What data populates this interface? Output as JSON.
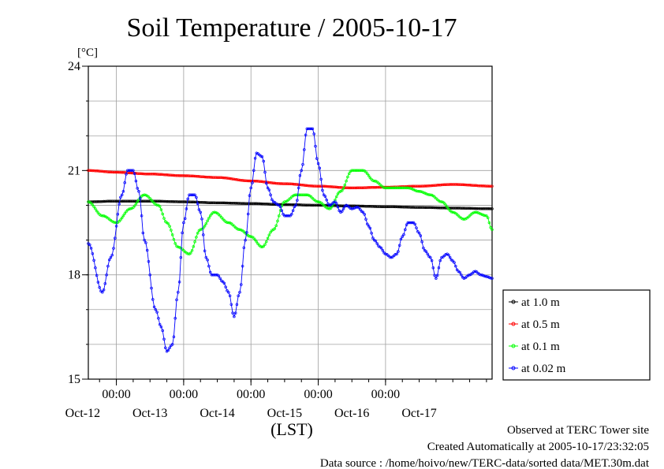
{
  "chart_data": {
    "type": "line",
    "title": "Soil Temperature / 2005-10-17",
    "ylabel": "[°C]",
    "xlabel": "(LST)",
    "ylim": [
      15,
      24
    ],
    "yticks": [
      15,
      18,
      21,
      24
    ],
    "xlim": [
      -10,
      134
    ],
    "x_unit": "hours from 2005-10-12 00:00 LST",
    "xticks_time": [
      "00:00",
      "00:00",
      "00:00",
      "00:00",
      "00:00"
    ],
    "xticks_date": [
      "Oct-12",
      "Oct-13",
      "Oct-14",
      "Oct-15",
      "Oct-16",
      "Oct-17"
    ],
    "grid": true,
    "legend_position": "right",
    "series": [
      {
        "name": "at 1.0 m",
        "color": "#000000",
        "x": [
          -10,
          0,
          12,
          24,
          36,
          48,
          60,
          72,
          84,
          96,
          108,
          120,
          134
        ],
        "y": [
          20.1,
          20.12,
          20.12,
          20.1,
          20.07,
          20.05,
          20.02,
          20.0,
          19.98,
          19.96,
          19.94,
          19.92,
          19.9
        ]
      },
      {
        "name": "at 0.5 m",
        "color": "#ff0000",
        "x": [
          -10,
          0,
          12,
          24,
          36,
          48,
          60,
          72,
          84,
          96,
          108,
          120,
          134
        ],
        "y": [
          21.0,
          20.95,
          20.9,
          20.85,
          20.8,
          20.7,
          20.62,
          20.55,
          20.5,
          20.52,
          20.55,
          20.6,
          20.55
        ]
      },
      {
        "name": "at 0.1 m",
        "color": "#00ff00",
        "x": [
          -10,
          -5,
          0,
          5,
          10,
          15,
          18,
          22,
          26,
          30,
          35,
          40,
          44,
          48,
          52,
          56,
          60,
          64,
          68,
          72,
          76,
          80,
          84,
          88,
          92,
          96,
          100,
          104,
          108,
          112,
          116,
          120,
          124,
          128,
          132,
          134
        ],
        "y": [
          20.1,
          19.7,
          19.5,
          19.9,
          20.3,
          20.0,
          19.5,
          18.8,
          18.6,
          19.3,
          19.8,
          19.5,
          19.3,
          19.1,
          18.8,
          19.3,
          20.1,
          20.3,
          20.3,
          20.1,
          19.9,
          20.4,
          21.0,
          21.0,
          20.7,
          20.5,
          20.5,
          20.5,
          20.4,
          20.3,
          20.1,
          19.8,
          19.6,
          19.8,
          19.7,
          19.3
        ]
      },
      {
        "name": "at 0.02 m",
        "color": "#0000ff",
        "x": [
          -10,
          -5,
          -2,
          2,
          4,
          6,
          8,
          10,
          14,
          16,
          18,
          20,
          22,
          24,
          26,
          28,
          30,
          32,
          34,
          36,
          38,
          40,
          42,
          44,
          46,
          48,
          50,
          52,
          54,
          56,
          58,
          60,
          62,
          64,
          66,
          68,
          70,
          72,
          74,
          76,
          78,
          80,
          82,
          84,
          86,
          88,
          90,
          92,
          94,
          96,
          98,
          100,
          102,
          104,
          106,
          108,
          110,
          112,
          114,
          116,
          118,
          120,
          122,
          124,
          126,
          128,
          130,
          132,
          134
        ],
        "y": [
          18.9,
          17.5,
          18.5,
          20.3,
          21.0,
          21.0,
          20.4,
          19.0,
          17.0,
          16.5,
          15.8,
          16.0,
          17.5,
          19.5,
          20.3,
          20.3,
          19.8,
          18.5,
          18.0,
          18.0,
          17.8,
          17.5,
          16.8,
          17.5,
          19.0,
          20.5,
          21.5,
          21.4,
          20.5,
          20.1,
          20.0,
          19.7,
          19.7,
          20.0,
          21.0,
          22.2,
          22.2,
          21.2,
          20.3,
          20.0,
          20.1,
          19.8,
          20.0,
          19.9,
          19.95,
          19.8,
          19.4,
          19.0,
          18.8,
          18.6,
          18.5,
          18.6,
          19.1,
          19.5,
          19.5,
          19.2,
          18.7,
          18.5,
          17.9,
          18.5,
          18.6,
          18.4,
          18.1,
          17.9,
          18.0,
          18.1,
          18.0,
          17.95,
          17.9
        ]
      }
    ]
  },
  "footer": {
    "line1": "Observed at TERC Tower site",
    "line2": "Created Automatically at 2005-10-17/23:32:05",
    "line3": "Data source : /home/hoivo/new/TERC-data/sorted  data/MET.30m.dat"
  }
}
